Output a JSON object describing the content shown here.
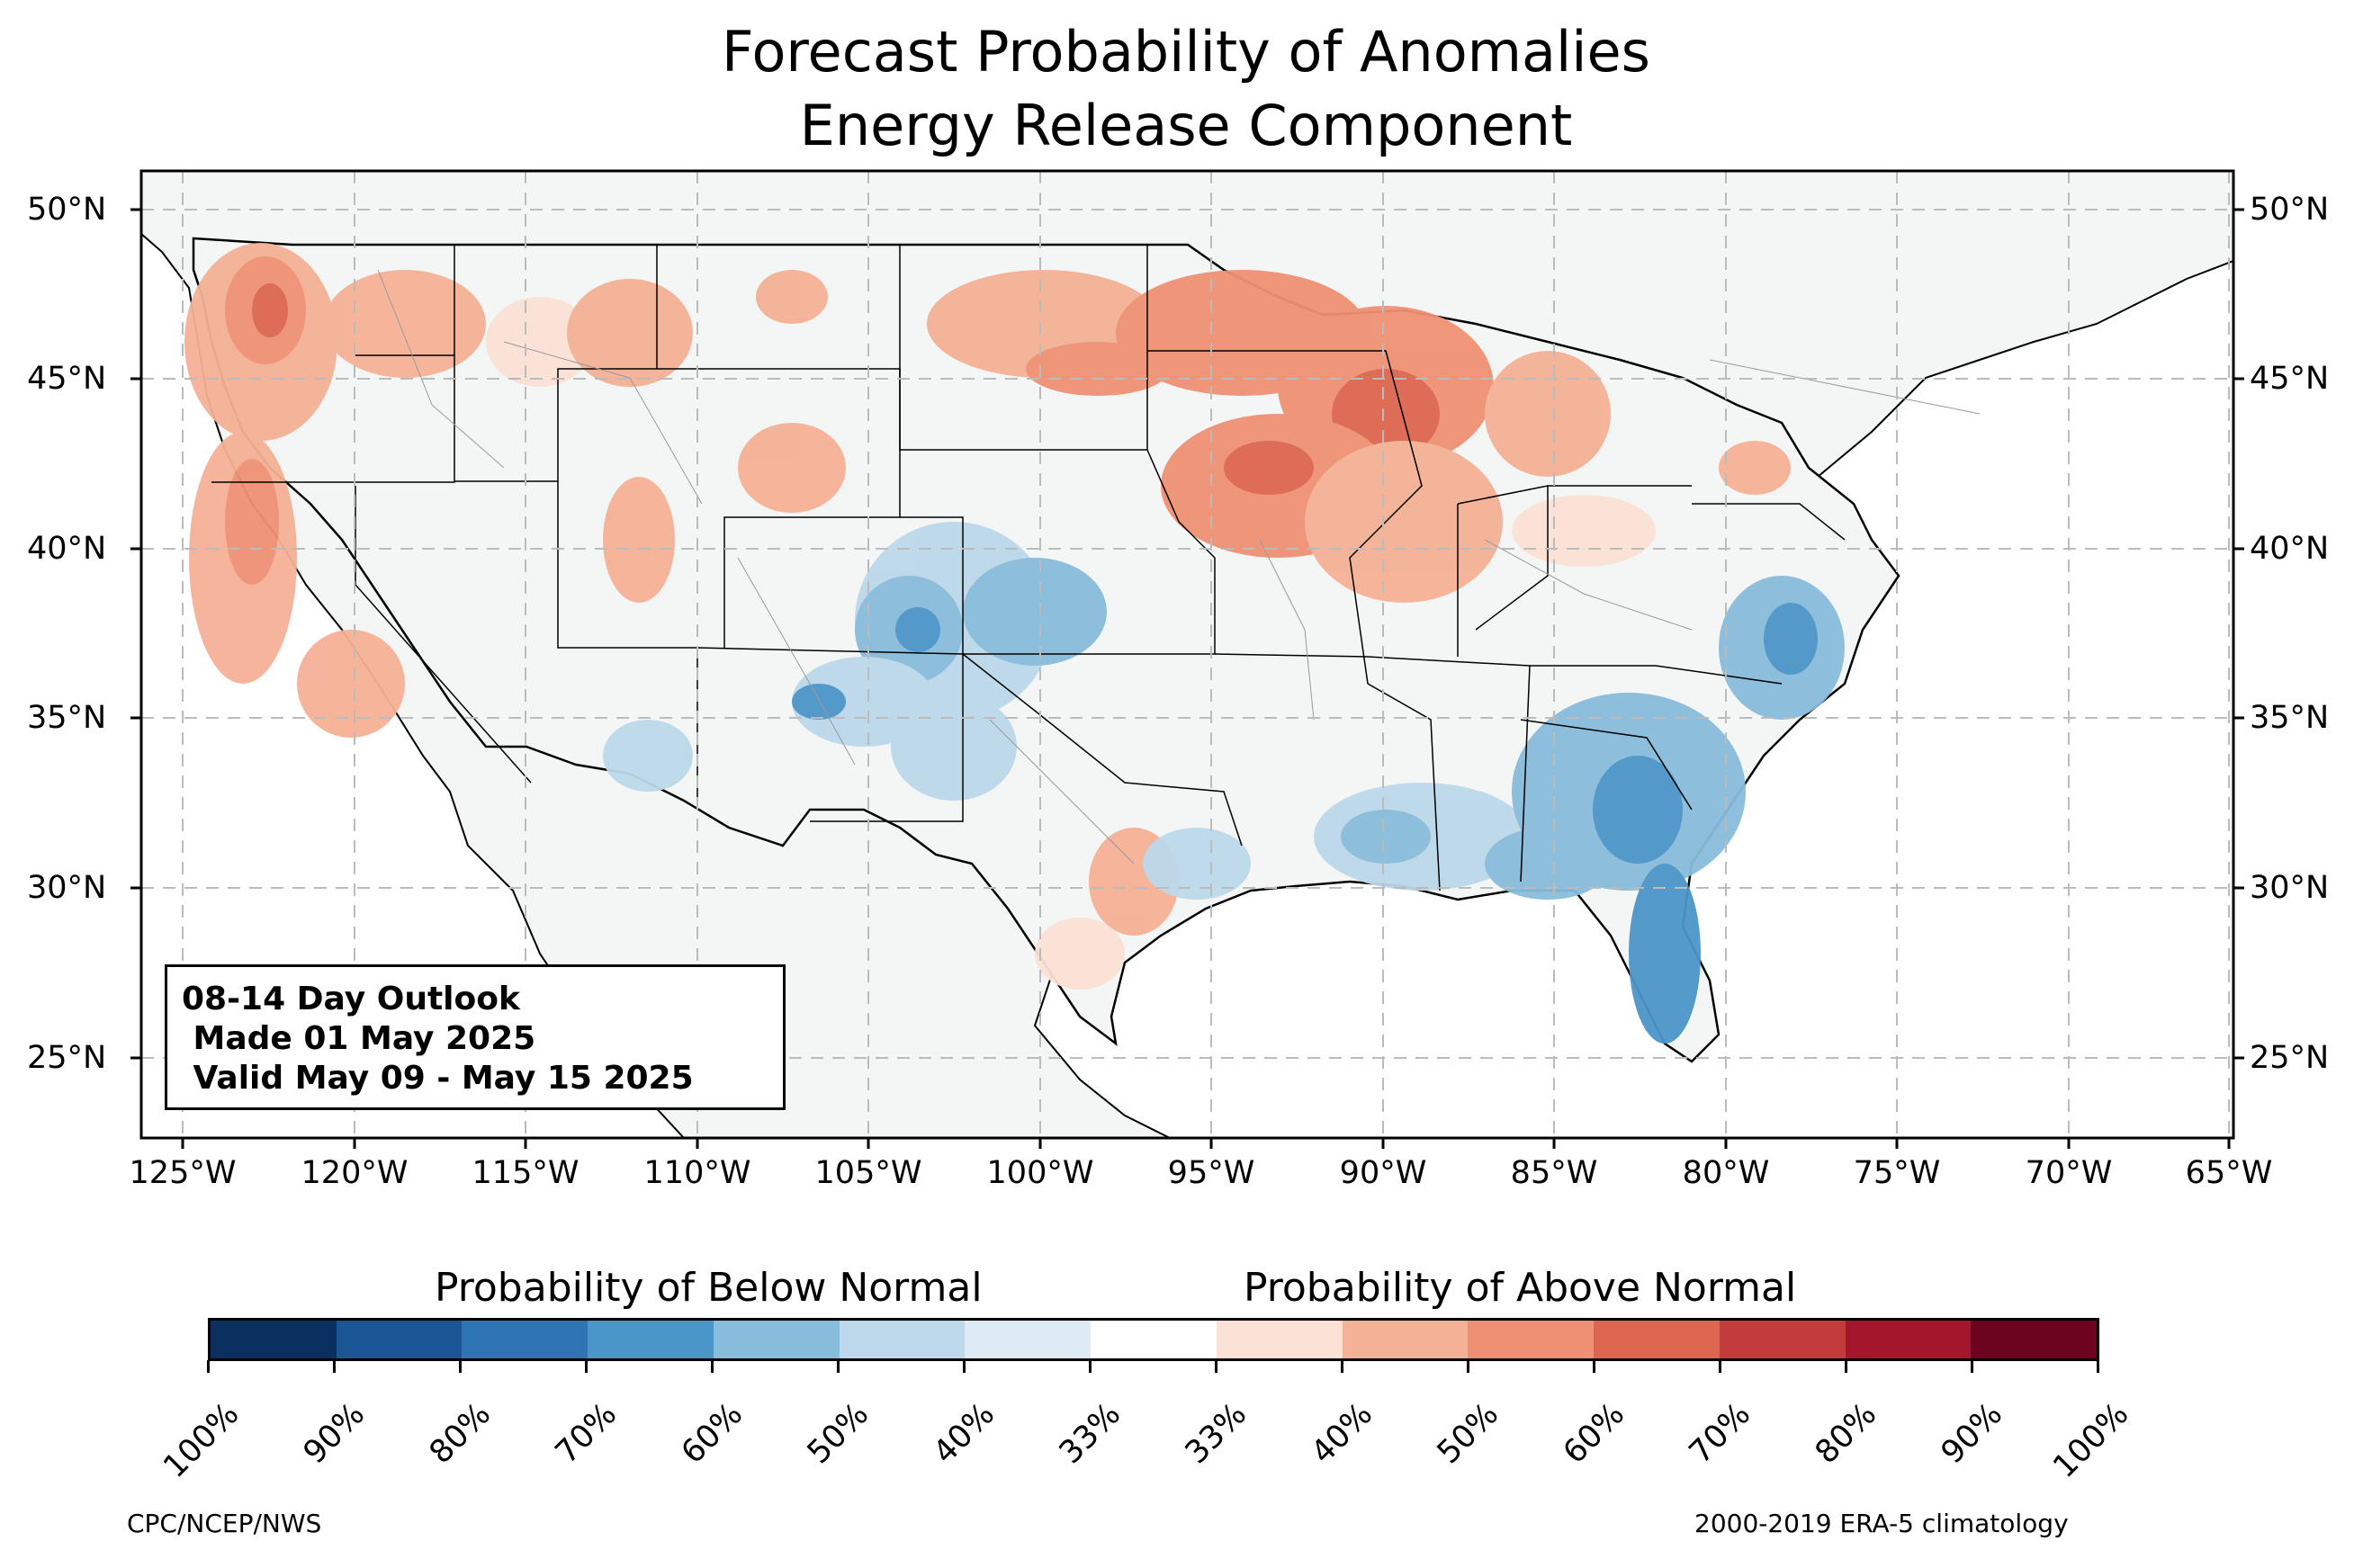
{
  "title": {
    "line1": "Forecast Probability of Anomalies",
    "line2": "Energy Release Component"
  },
  "map": {
    "lat_labels": [
      "50°N",
      "45°N",
      "40°N",
      "35°N",
      "30°N",
      "25°N"
    ],
    "lon_labels": [
      "125°W",
      "120°W",
      "115°W",
      "110°W",
      "105°W",
      "100°W",
      "95°W",
      "90°W",
      "85°W",
      "80°W",
      "75°W",
      "70°W",
      "65°W"
    ],
    "land_color": "#f4f5f5",
    "background_color": "#ffffff"
  },
  "outlook_box": {
    "line1": "08-14 Day Outlook",
    "line2": " Made 01 May 2025",
    "line3": " Valid May 09 - May 15 2025"
  },
  "colorbar": {
    "below_label": "Probability of Below Normal",
    "above_label": "Probability of Above Normal",
    "tick_labels": [
      "100%",
      "90%",
      "80%",
      "70%",
      "60%",
      "50%",
      "40%",
      "33%",
      "33%",
      "40%",
      "50%",
      "60%",
      "70%",
      "80%",
      "90%",
      "100%"
    ],
    "colors": [
      "#0b2f5e",
      "#1a5696",
      "#2f75b5",
      "#4b96c8",
      "#88bcdb",
      "#bcd8ea",
      "#dfebf4",
      "#ffffff",
      "#fce2d6",
      "#f5b196",
      "#ef9074",
      "#dd6650",
      "#c23c3c",
      "#a3162c",
      "#6c0420"
    ]
  },
  "footer": {
    "left": "CPC/NCEP/NWS",
    "right": "2000-2019 ERA-5 climatology"
  }
}
